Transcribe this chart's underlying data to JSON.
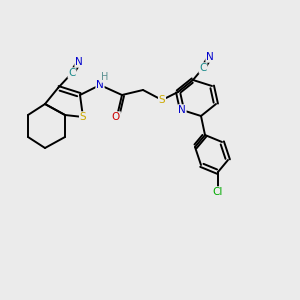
{
  "background_color": "#ebebeb",
  "bond_color": "#000000",
  "atom_colors": {
    "N": "#0000cc",
    "S": "#ccaa00",
    "O": "#cc0000",
    "C": "#1a8a8a",
    "H": "#5a9090",
    "Cl": "#00aa00"
  },
  "figsize": [
    3.0,
    3.0
  ],
  "dpi": 100
}
